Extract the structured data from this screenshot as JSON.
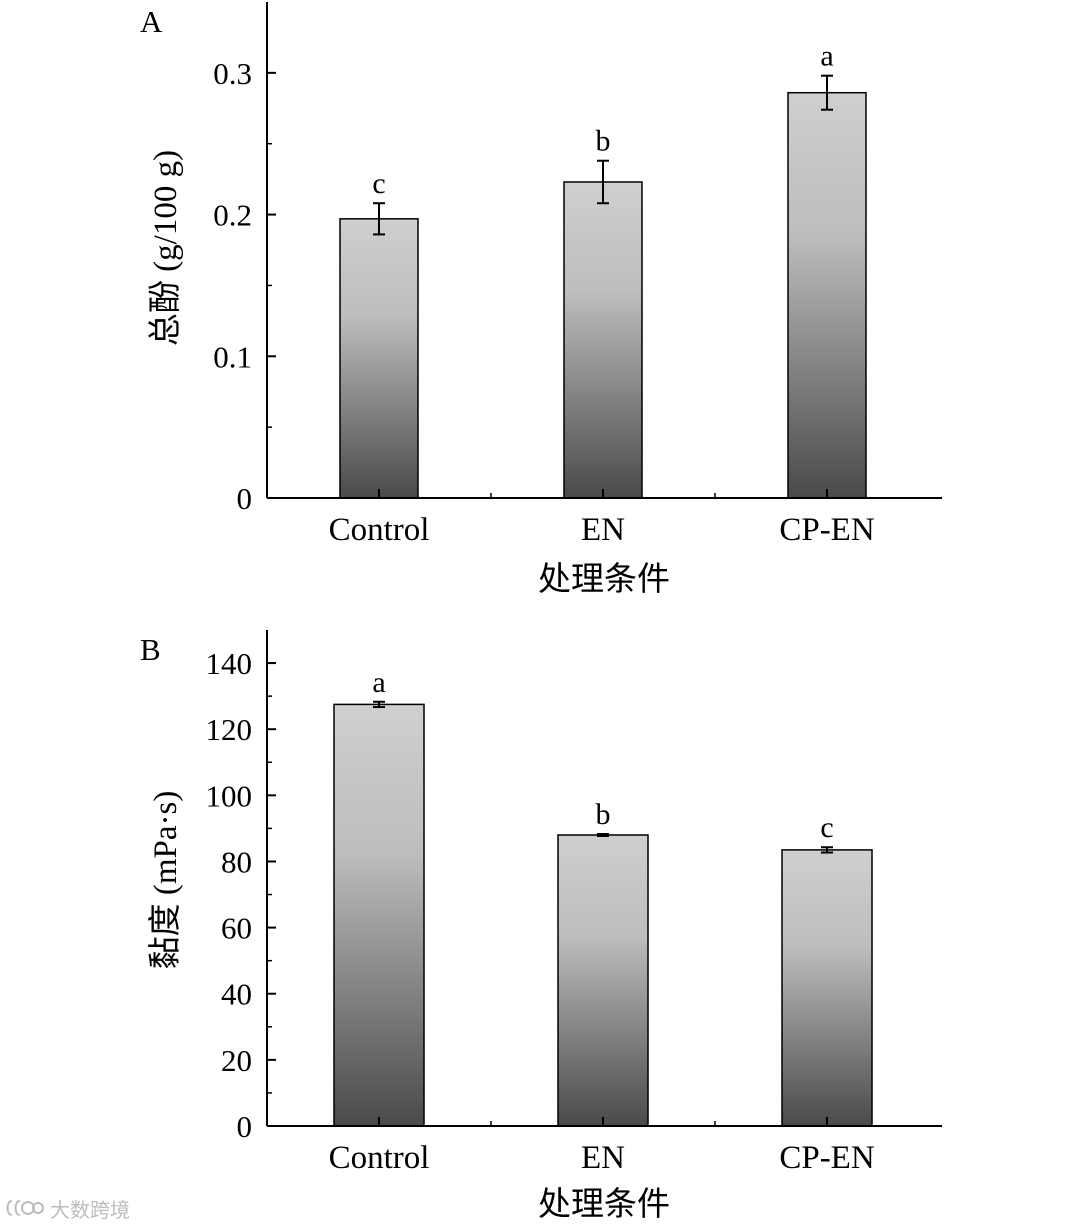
{
  "chart_data": [
    {
      "type": "bar",
      "panel_label": "A",
      "categories": [
        "Control",
        "EN",
        "CP-EN"
      ],
      "values": [
        0.197,
        0.223,
        0.286
      ],
      "errors": [
        0.011,
        0.015,
        0.012
      ],
      "significance": [
        "c",
        "b",
        "a"
      ],
      "xlabel": "处理条件",
      "ylabel": "总酚 (g/100 g)",
      "ylim": [
        0,
        0.35
      ],
      "yticks": [
        0,
        0.1,
        0.2,
        0.3
      ],
      "ytick_labels": [
        "0",
        "0.1",
        "0.2",
        "0.3"
      ],
      "grid": false,
      "bar_fill": "gradient light-grey (top) to dark-grey (bottom)"
    },
    {
      "type": "bar",
      "panel_label": "B",
      "categories": [
        "Control",
        "EN",
        "CP-EN"
      ],
      "values": [
        127.5,
        88.0,
        83.5
      ],
      "errors": [
        0.8,
        0.3,
        0.8
      ],
      "significance": [
        "a",
        "b",
        "c"
      ],
      "xlabel": "处理条件",
      "ylabel": "黏度 (mPa·s)",
      "ylim": [
        0,
        150
      ],
      "yticks": [
        0,
        20,
        40,
        60,
        80,
        100,
        120,
        140
      ],
      "ytick_labels": [
        "0",
        "20",
        "40",
        "60",
        "80",
        "100",
        "120",
        "140"
      ],
      "grid": false,
      "bar_fill": "gradient light-grey (top) to dark-grey (bottom)"
    }
  ],
  "colors": {
    "bar_top": "#cfcfcf",
    "bar_bottom": "#4a4a4a",
    "axis": "#000000",
    "watermark": "#bcbcbc"
  },
  "watermark": {
    "text": "大数跨境",
    "icon": "logo-icon"
  }
}
